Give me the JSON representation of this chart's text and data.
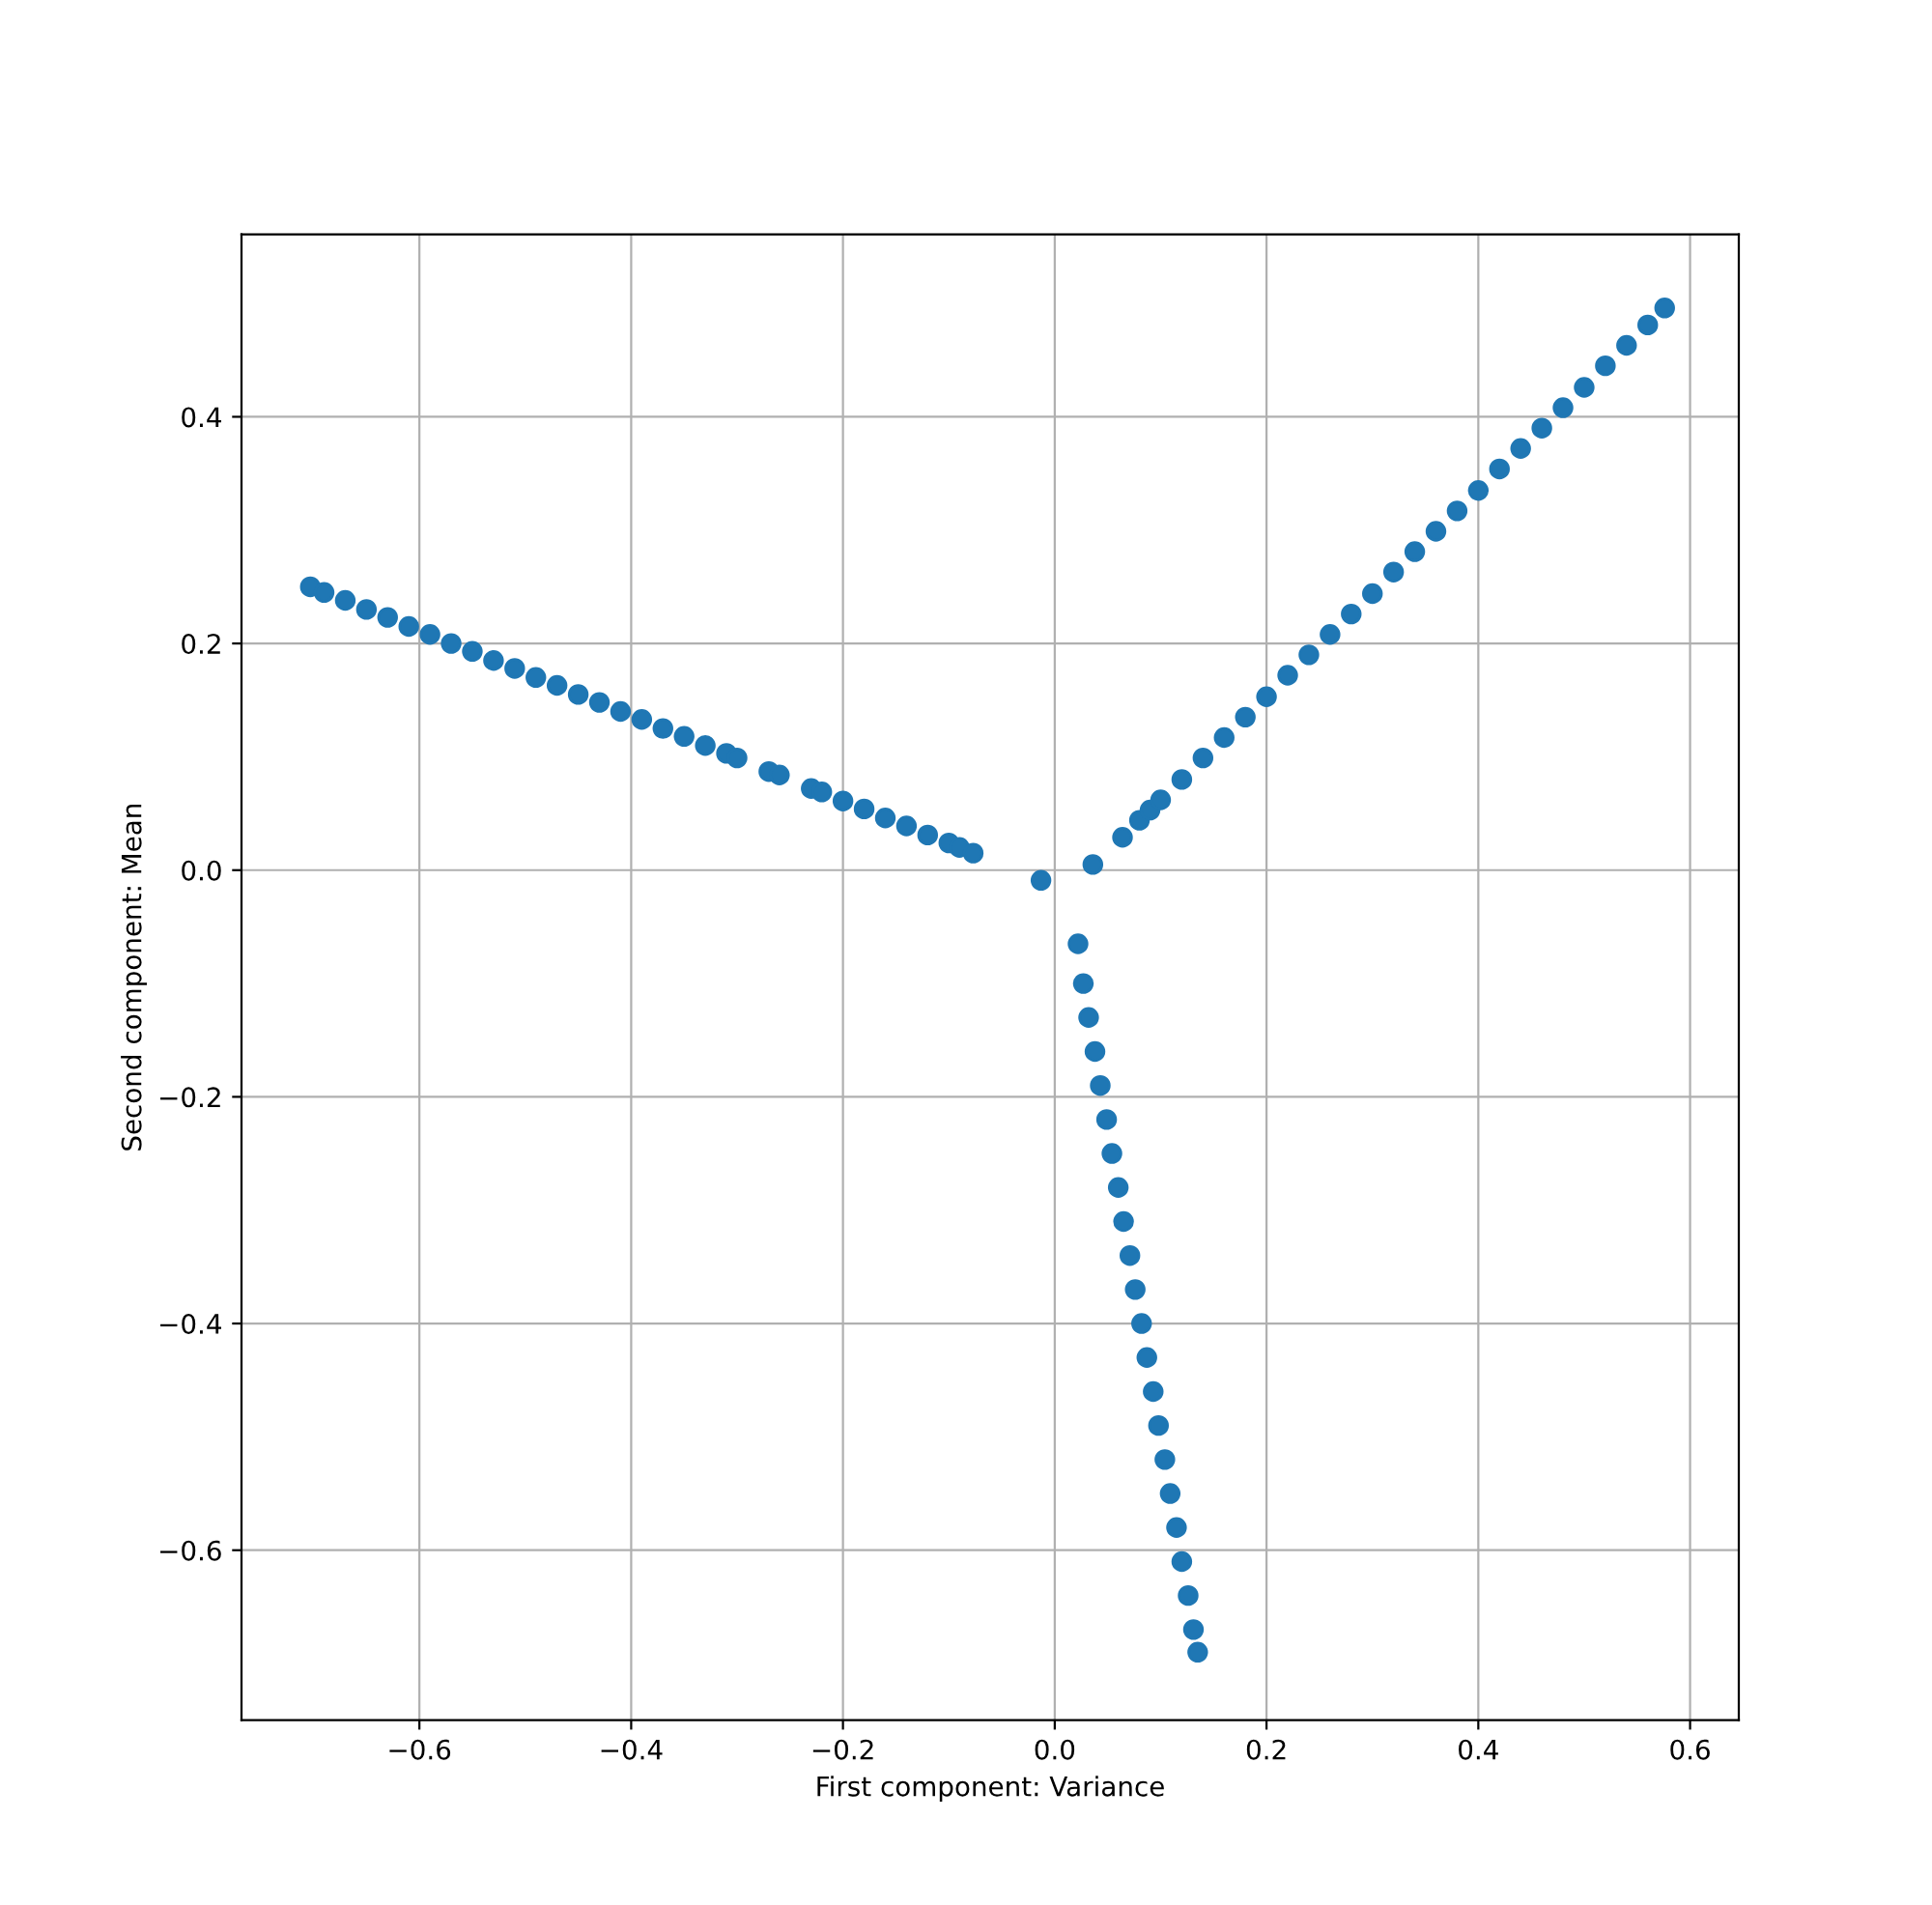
{
  "chart_data": {
    "type": "scatter",
    "xlabel": "First component: Variance",
    "ylabel": "Second component: Mean",
    "xlim": [
      -0.768,
      0.646
    ],
    "ylim": [
      -0.75,
      0.561
    ],
    "xticks": [
      {
        "value": -0.6,
        "label": "−0.6"
      },
      {
        "value": -0.4,
        "label": "−0.4"
      },
      {
        "value": -0.2,
        "label": "−0.2"
      },
      {
        "value": 0.0,
        "label": "0.0"
      },
      {
        "value": 0.2,
        "label": "0.2"
      },
      {
        "value": 0.4,
        "label": "0.4"
      },
      {
        "value": 0.6,
        "label": "0.6"
      }
    ],
    "yticks": [
      {
        "value": -0.6,
        "label": "−0.6"
      },
      {
        "value": -0.4,
        "label": "−0.4"
      },
      {
        "value": -0.2,
        "label": "−0.2"
      },
      {
        "value": 0.0,
        "label": "0.0"
      },
      {
        "value": 0.2,
        "label": "0.2"
      },
      {
        "value": 0.4,
        "label": "0.4"
      }
    ],
    "grid": true,
    "marker": "circle",
    "series": [
      {
        "color": "#1f77b4",
        "x": [
          -0.703,
          -0.69,
          -0.67,
          -0.65,
          -0.63,
          -0.61,
          -0.59,
          -0.57,
          -0.55,
          -0.53,
          -0.51,
          -0.49,
          -0.47,
          -0.45,
          -0.43,
          -0.41,
          -0.39,
          -0.37,
          -0.35,
          -0.33,
          -0.31,
          -0.3,
          -0.27,
          -0.26,
          -0.23,
          -0.22,
          -0.2,
          -0.18,
          -0.16,
          -0.14,
          -0.12,
          -0.1,
          -0.09,
          -0.077,
          -0.013,
          0.036,
          0.064,
          0.022,
          0.08,
          0.09,
          0.1,
          0.12,
          0.14,
          0.16,
          0.18,
          0.2,
          0.22,
          0.24,
          0.26,
          0.28,
          0.3,
          0.32,
          0.34,
          0.36,
          0.38,
          0.4,
          0.42,
          0.44,
          0.46,
          0.48,
          0.5,
          0.52,
          0.54,
          0.56,
          0.576,
          0.027,
          0.032,
          0.038,
          0.043,
          0.049,
          0.054,
          0.06,
          0.065,
          0.071,
          0.076,
          0.082,
          0.087,
          0.093,
          0.098,
          0.104,
          0.109,
          0.115,
          0.12,
          0.126,
          0.131,
          0.135
        ],
        "values": [
          0.25,
          0.245,
          0.238,
          0.23,
          0.223,
          0.215,
          0.208,
          0.2,
          0.193,
          0.185,
          0.178,
          0.17,
          0.163,
          0.155,
          0.148,
          0.14,
          0.133,
          0.125,
          0.118,
          0.11,
          0.103,
          0.099,
          0.087,
          0.084,
          0.072,
          0.069,
          0.061,
          0.054,
          0.046,
          0.039,
          0.031,
          0.024,
          0.02,
          0.015,
          -0.009,
          0.005,
          0.029,
          -0.065,
          0.044,
          0.053,
          0.062,
          0.08,
          0.099,
          0.117,
          0.135,
          0.153,
          0.172,
          0.19,
          0.208,
          0.226,
          0.244,
          0.263,
          0.281,
          0.299,
          0.317,
          0.335,
          0.354,
          0.372,
          0.39,
          0.408,
          0.426,
          0.445,
          0.463,
          0.481,
          0.496,
          -0.1,
          -0.13,
          -0.16,
          -0.19,
          -0.22,
          -0.25,
          -0.28,
          -0.31,
          -0.34,
          -0.37,
          -0.4,
          -0.43,
          -0.46,
          -0.49,
          -0.52,
          -0.55,
          -0.58,
          -0.61,
          -0.64,
          -0.67,
          -0.69
        ]
      }
    ]
  }
}
